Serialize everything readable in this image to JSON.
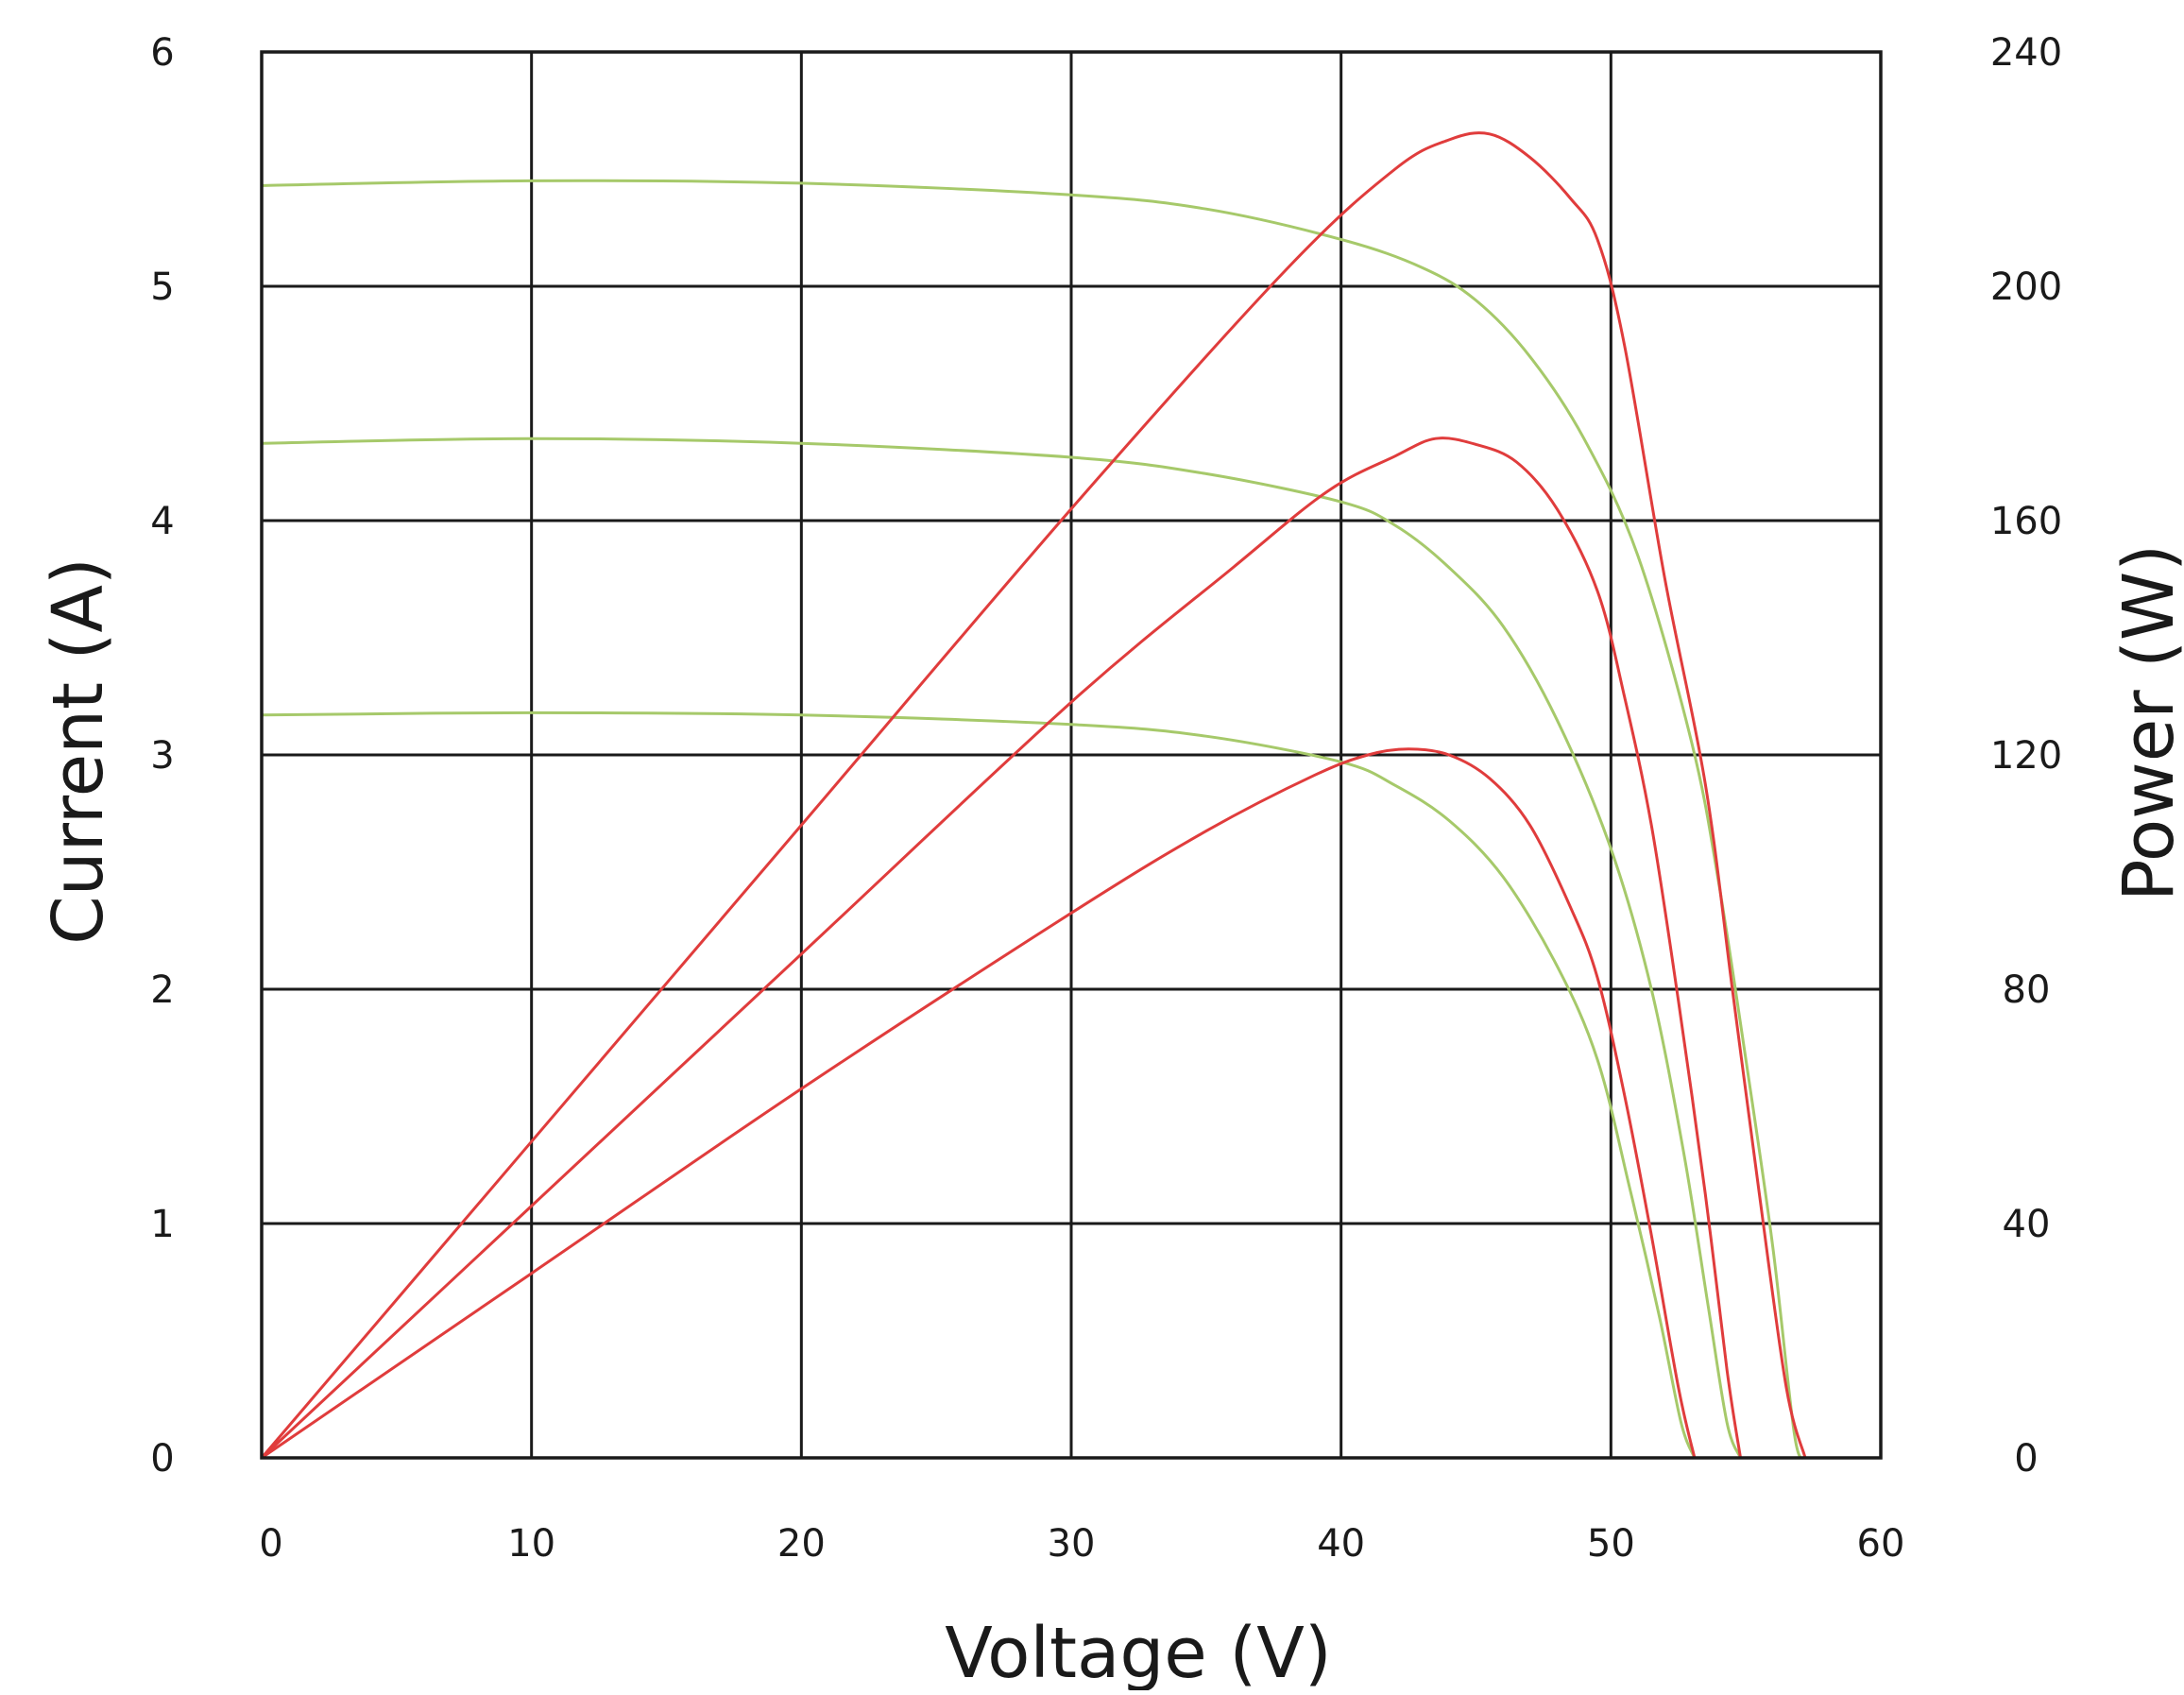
{
  "chart_data": {
    "type": "line",
    "title": "",
    "xlabel": "Voltage (V)",
    "ylabel": "Current (A)",
    "y2label": "Power (W)",
    "xlim": [
      0,
      60
    ],
    "ylim": [
      0,
      6
    ],
    "y2lim": [
      0,
      240
    ],
    "x_ticks": [
      "0",
      "10",
      "20",
      "30",
      "40",
      "50",
      "60"
    ],
    "y_ticks": [
      "0",
      "1",
      "2",
      "3",
      "4",
      "5",
      "6"
    ],
    "y2_ticks": [
      "0",
      "40",
      "80",
      "120",
      "160",
      "200",
      "240"
    ],
    "grid": true,
    "legend": "none",
    "colors": {
      "current": "#a6c96a",
      "power": "#e03c3c",
      "grid": "#1a1a1a"
    },
    "current_series": [
      {
        "points": [
          [
            0,
            5.43
          ],
          [
            10,
            5.45
          ],
          [
            20,
            5.44
          ],
          [
            30,
            5.39
          ],
          [
            35,
            5.33
          ],
          [
            40,
            5.2
          ],
          [
            43,
            5.08
          ],
          [
            45,
            4.94
          ],
          [
            47,
            4.7
          ],
          [
            49,
            4.35
          ],
          [
            51,
            3.85
          ],
          [
            53,
            3.05
          ],
          [
            54,
            2.45
          ],
          [
            55,
            1.7
          ],
          [
            56,
            0.9
          ],
          [
            56.8,
            0.1
          ],
          [
            57.2,
            0
          ]
        ]
      },
      {
        "points": [
          [
            0,
            4.33
          ],
          [
            10,
            4.35
          ],
          [
            20,
            4.33
          ],
          [
            30,
            4.27
          ],
          [
            35,
            4.2
          ],
          [
            40,
            4.08
          ],
          [
            42,
            3.98
          ],
          [
            44,
            3.8
          ],
          [
            46,
            3.55
          ],
          [
            48,
            3.15
          ],
          [
            50,
            2.6
          ],
          [
            51.5,
            2.0
          ],
          [
            52.7,
            1.3
          ],
          [
            53.6,
            0.65
          ],
          [
            54.3,
            0.15
          ],
          [
            54.8,
            0
          ]
        ]
      },
      {
        "points": [
          [
            0,
            3.17
          ],
          [
            10,
            3.18
          ],
          [
            20,
            3.17
          ],
          [
            30,
            3.13
          ],
          [
            35,
            3.08
          ],
          [
            40,
            2.97
          ],
          [
            42,
            2.87
          ],
          [
            44,
            2.72
          ],
          [
            46,
            2.48
          ],
          [
            48,
            2.1
          ],
          [
            49.5,
            1.7
          ],
          [
            50.7,
            1.15
          ],
          [
            51.8,
            0.6
          ],
          [
            52.6,
            0.15
          ],
          [
            53.1,
            0
          ]
        ]
      }
    ],
    "power_series": [
      {
        "points": [
          [
            0,
            0
          ],
          [
            10,
            54
          ],
          [
            20,
            108
          ],
          [
            30,
            162
          ],
          [
            38,
            203
          ],
          [
            42,
            220
          ],
          [
            44,
            225
          ],
          [
            45.5,
            226
          ],
          [
            47,
            222
          ],
          [
            48.5,
            215
          ],
          [
            49.5,
            208
          ],
          [
            50.5,
            190
          ],
          [
            52,
            150
          ],
          [
            53.5,
            115
          ],
          [
            54.5,
            80
          ],
          [
            55.5,
            45
          ],
          [
            56.5,
            12
          ],
          [
            57.2,
            0
          ]
        ]
      },
      {
        "points": [
          [
            0,
            0
          ],
          [
            10,
            43
          ],
          [
            20,
            86
          ],
          [
            30,
            129
          ],
          [
            36,
            152
          ],
          [
            39.5,
            165
          ],
          [
            42,
            171
          ],
          [
            43.5,
            174
          ],
          [
            45,
            173
          ],
          [
            46.5,
            170
          ],
          [
            48,
            162
          ],
          [
            49.5,
            148
          ],
          [
            50.5,
            130
          ],
          [
            51.5,
            108
          ],
          [
            52.5,
            78
          ],
          [
            53.5,
            45
          ],
          [
            54.3,
            15
          ],
          [
            54.8,
            0
          ]
        ]
      },
      {
        "points": [
          [
            0,
            0
          ],
          [
            10,
            31.5
          ],
          [
            20,
            63
          ],
          [
            30,
            93
          ],
          [
            35,
            107
          ],
          [
            39,
            116.5
          ],
          [
            41,
            120
          ],
          [
            42.5,
            121
          ],
          [
            44,
            120
          ],
          [
            45.5,
            116
          ],
          [
            47,
            108
          ],
          [
            48.5,
            94
          ],
          [
            49.5,
            82
          ],
          [
            50.5,
            62
          ],
          [
            51.5,
            38
          ],
          [
            52.5,
            12
          ],
          [
            53.1,
            0
          ]
        ]
      }
    ]
  }
}
